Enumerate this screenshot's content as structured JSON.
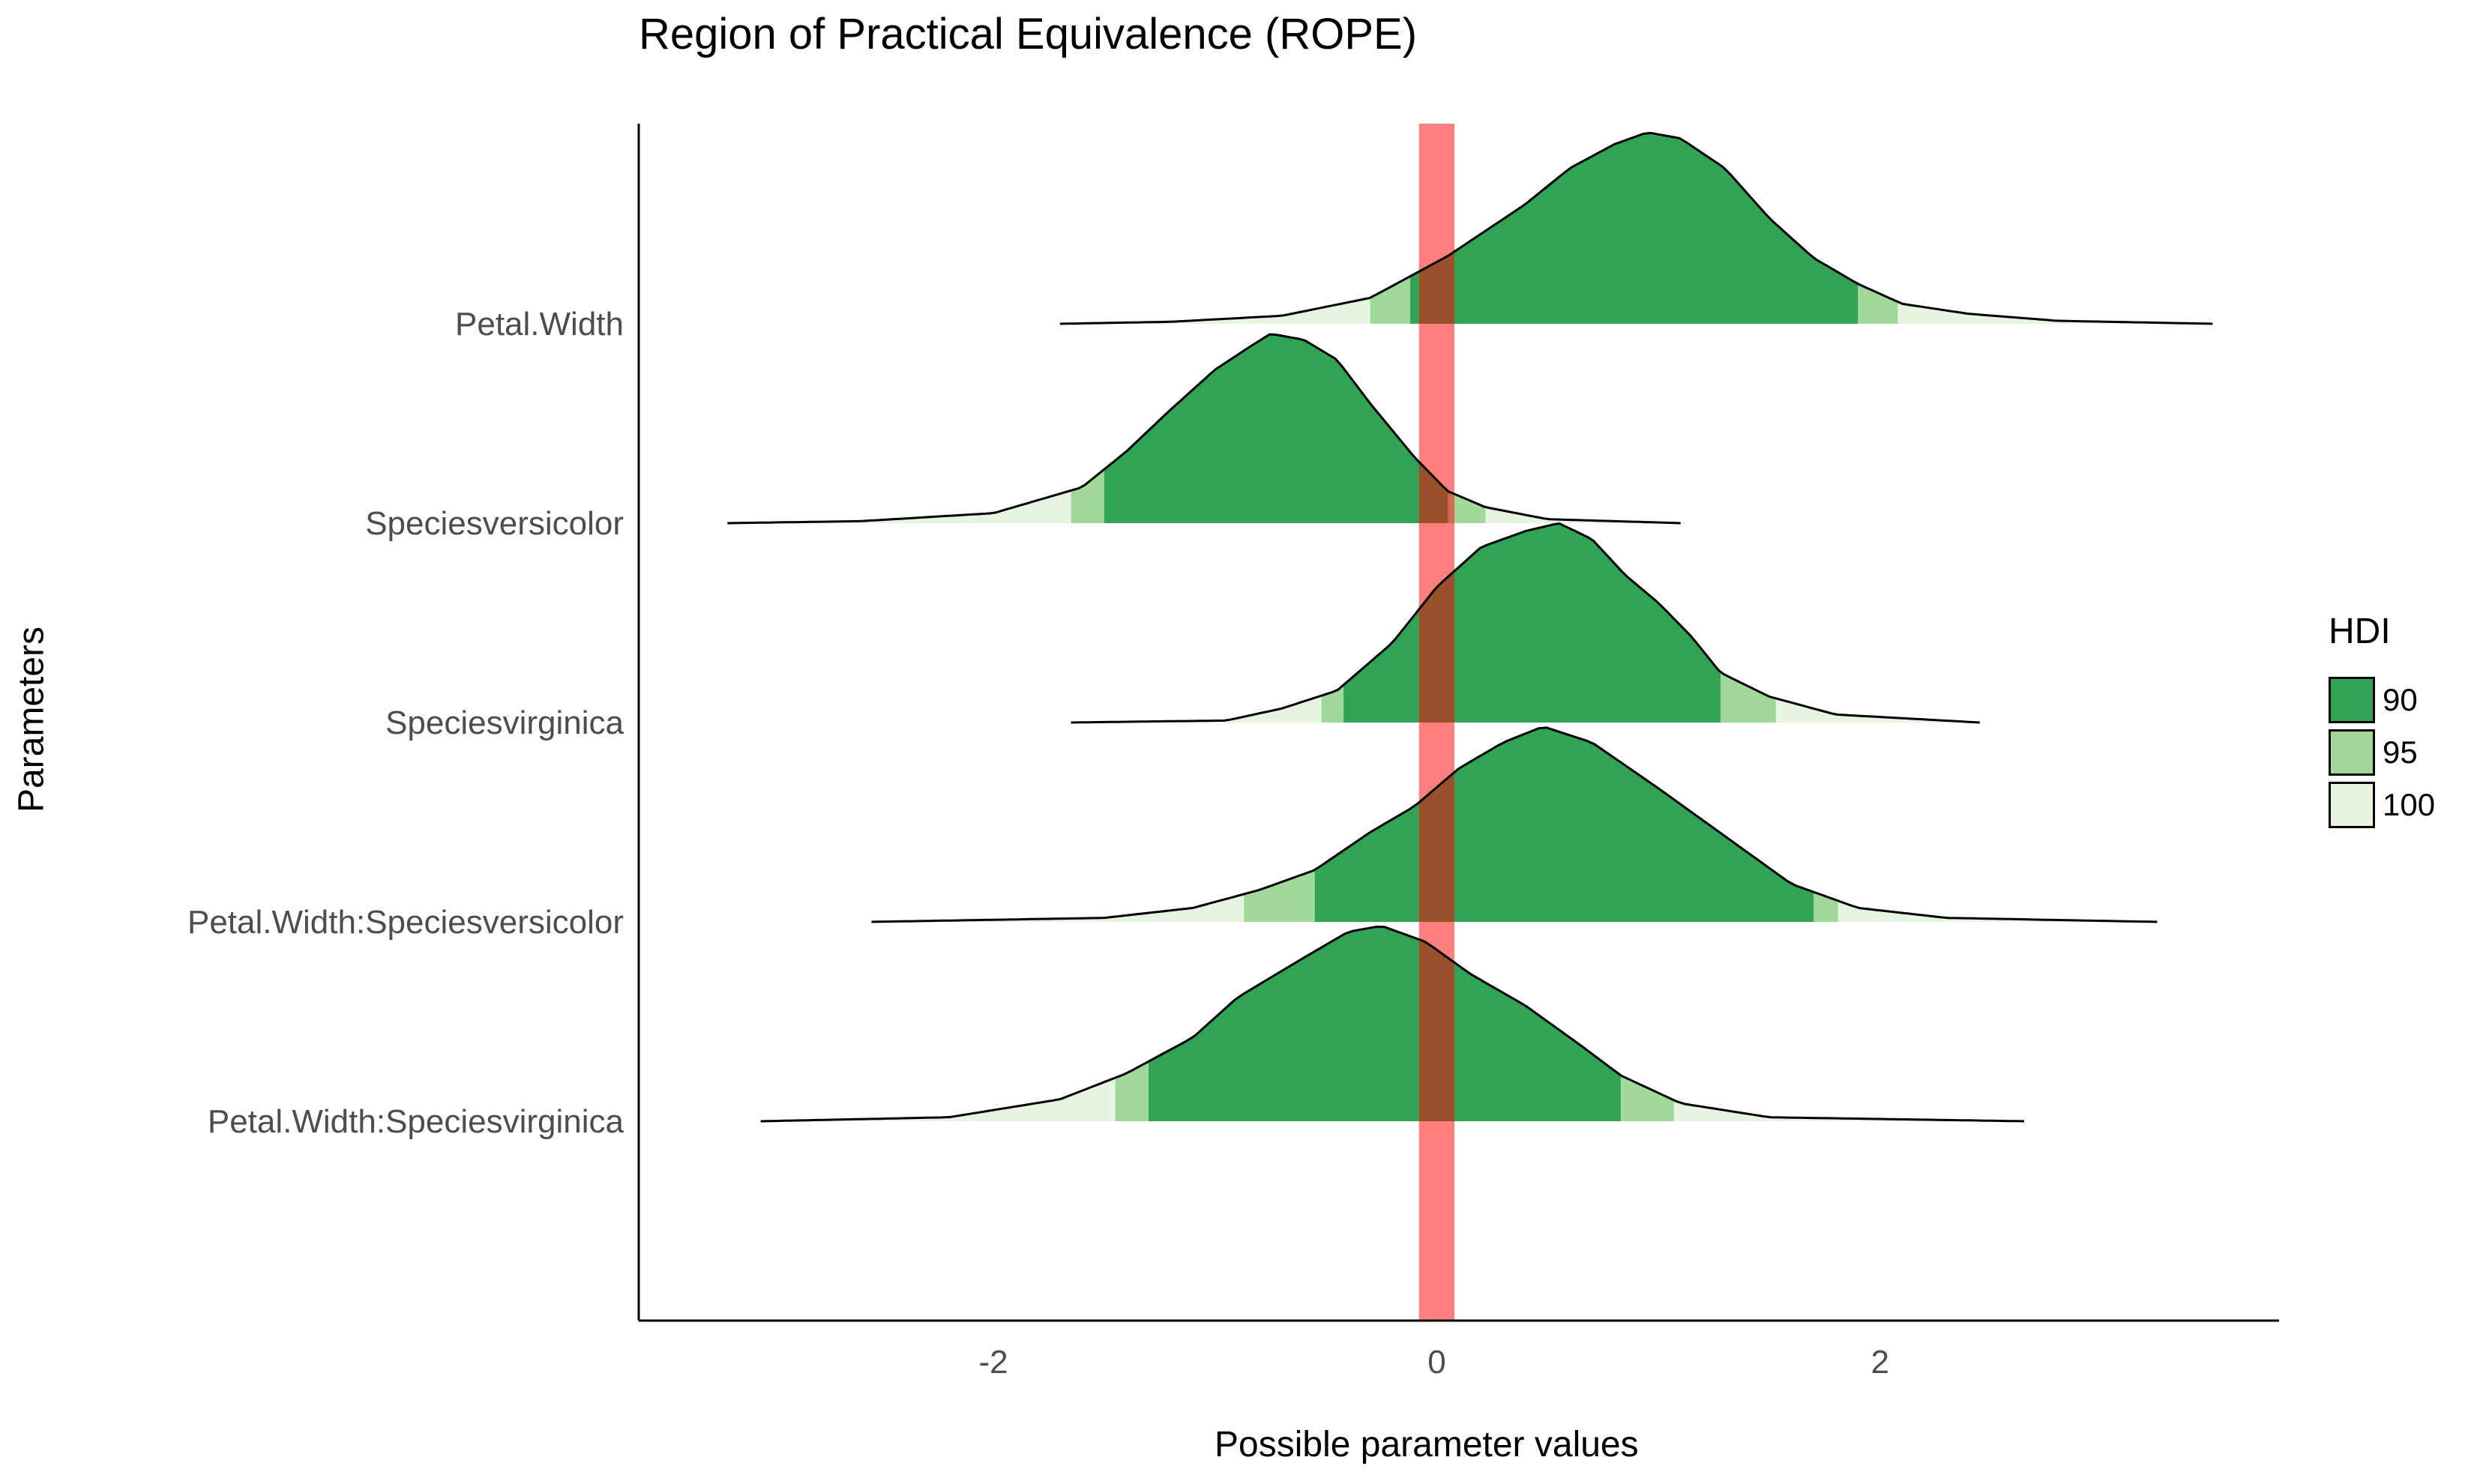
{
  "chart_data": {
    "type": "ridgeline",
    "title": "Region of Practical Equivalence (ROPE)",
    "xlabel": "Possible parameter values",
    "ylabel": "Parameters",
    "xlim": [
      -3.6,
      3.8
    ],
    "x_ticks": [
      -2,
      0,
      2
    ],
    "x_tick_labels": [
      "-2",
      "0",
      "2"
    ],
    "grid": false,
    "legend": {
      "title": "HDI",
      "position": "right",
      "items": [
        {
          "label": "90",
          "color": "#31a354"
        },
        {
          "label": "95",
          "color": "#a1d99b"
        },
        {
          "label": "100",
          "color": "#e5f5e0"
        }
      ]
    },
    "rope": {
      "range": [
        -0.08,
        0.08
      ],
      "color": "#ff0000",
      "opacity": 0.5
    },
    "series": [
      {
        "name": "Petal.Width",
        "range": [
          -1.7,
          3.5
        ],
        "hdi90": [
          -0.12,
          1.9
        ],
        "hdi95": [
          -0.3,
          2.08
        ],
        "curve": [
          [
            -1.7,
            0
          ],
          [
            -1.2,
            0.01
          ],
          [
            -0.7,
            0.04
          ],
          [
            -0.3,
            0.13
          ],
          [
            0.05,
            0.34
          ],
          [
            0.4,
            0.6
          ],
          [
            0.6,
            0.78
          ],
          [
            0.8,
            0.9
          ],
          [
            0.95,
            0.96
          ],
          [
            1.1,
            0.93
          ],
          [
            1.3,
            0.78
          ],
          [
            1.5,
            0.53
          ],
          [
            1.7,
            0.33
          ],
          [
            1.9,
            0.2
          ],
          [
            2.1,
            0.1
          ],
          [
            2.4,
            0.05
          ],
          [
            2.8,
            0.015
          ],
          [
            3.5,
            0
          ]
        ]
      },
      {
        "name": "Speciesversicolor",
        "range": [
          -3.2,
          1.1
        ],
        "hdi90": [
          -1.5,
          0.05
        ],
        "hdi95": [
          -1.65,
          0.22
        ],
        "curve": [
          [
            -3.2,
            0
          ],
          [
            -2.6,
            0.01
          ],
          [
            -2.0,
            0.05
          ],
          [
            -1.6,
            0.18
          ],
          [
            -1.4,
            0.36
          ],
          [
            -1.2,
            0.57
          ],
          [
            -1.0,
            0.77
          ],
          [
            -0.85,
            0.88
          ],
          [
            -0.75,
            0.95
          ],
          [
            -0.6,
            0.92
          ],
          [
            -0.45,
            0.82
          ],
          [
            -0.3,
            0.6
          ],
          [
            -0.1,
            0.33
          ],
          [
            0.05,
            0.16
          ],
          [
            0.22,
            0.08
          ],
          [
            0.5,
            0.02
          ],
          [
            1.1,
            0
          ]
        ]
      },
      {
        "name": "Speciesvirginica",
        "range": [
          -1.65,
          2.45
        ],
        "hdi90": [
          -0.42,
          1.28
        ],
        "hdi95": [
          -0.52,
          1.53
        ],
        "curve": [
          [
            -1.65,
            0
          ],
          [
            -0.95,
            0.01
          ],
          [
            -0.7,
            0.07
          ],
          [
            -0.45,
            0.16
          ],
          [
            -0.2,
            0.4
          ],
          [
            0.0,
            0.68
          ],
          [
            0.2,
            0.88
          ],
          [
            0.4,
            0.96
          ],
          [
            0.55,
            1.0
          ],
          [
            0.7,
            0.92
          ],
          [
            0.85,
            0.74
          ],
          [
            1.0,
            0.6
          ],
          [
            1.15,
            0.43
          ],
          [
            1.28,
            0.25
          ],
          [
            1.5,
            0.13
          ],
          [
            1.8,
            0.04
          ],
          [
            2.45,
            0
          ]
        ]
      },
      {
        "name": "Petal.Width:Speciesversicolor",
        "range": [
          -2.55,
          3.25
        ],
        "hdi90": [
          -0.55,
          1.7
        ],
        "hdi95": [
          -0.87,
          1.81
        ],
        "curve": [
          [
            -2.55,
            0
          ],
          [
            -1.5,
            0.02
          ],
          [
            -1.1,
            0.07
          ],
          [
            -0.8,
            0.16
          ],
          [
            -0.55,
            0.26
          ],
          [
            -0.3,
            0.45
          ],
          [
            -0.1,
            0.58
          ],
          [
            0.1,
            0.77
          ],
          [
            0.3,
            0.9
          ],
          [
            0.48,
            0.98
          ],
          [
            0.7,
            0.9
          ],
          [
            1.0,
            0.67
          ],
          [
            1.3,
            0.43
          ],
          [
            1.6,
            0.19
          ],
          [
            1.9,
            0.07
          ],
          [
            2.3,
            0.02
          ],
          [
            3.25,
            0
          ]
        ]
      },
      {
        "name": "Petal.Width:Speciesvirginica",
        "range": [
          -3.05,
          2.65
        ],
        "hdi90": [
          -1.3,
          0.83
        ],
        "hdi95": [
          -1.45,
          1.07
        ],
        "curve": [
          [
            -3.05,
            0
          ],
          [
            -2.2,
            0.02
          ],
          [
            -1.7,
            0.11
          ],
          [
            -1.4,
            0.24
          ],
          [
            -1.1,
            0.42
          ],
          [
            -0.9,
            0.62
          ],
          [
            -0.6,
            0.82
          ],
          [
            -0.4,
            0.95
          ],
          [
            -0.25,
            0.98
          ],
          [
            -0.05,
            0.9
          ],
          [
            0.15,
            0.74
          ],
          [
            0.4,
            0.58
          ],
          [
            0.65,
            0.38
          ],
          [
            0.83,
            0.23
          ],
          [
            1.1,
            0.09
          ],
          [
            1.5,
            0.02
          ],
          [
            2.65,
            0
          ]
        ]
      }
    ]
  }
}
